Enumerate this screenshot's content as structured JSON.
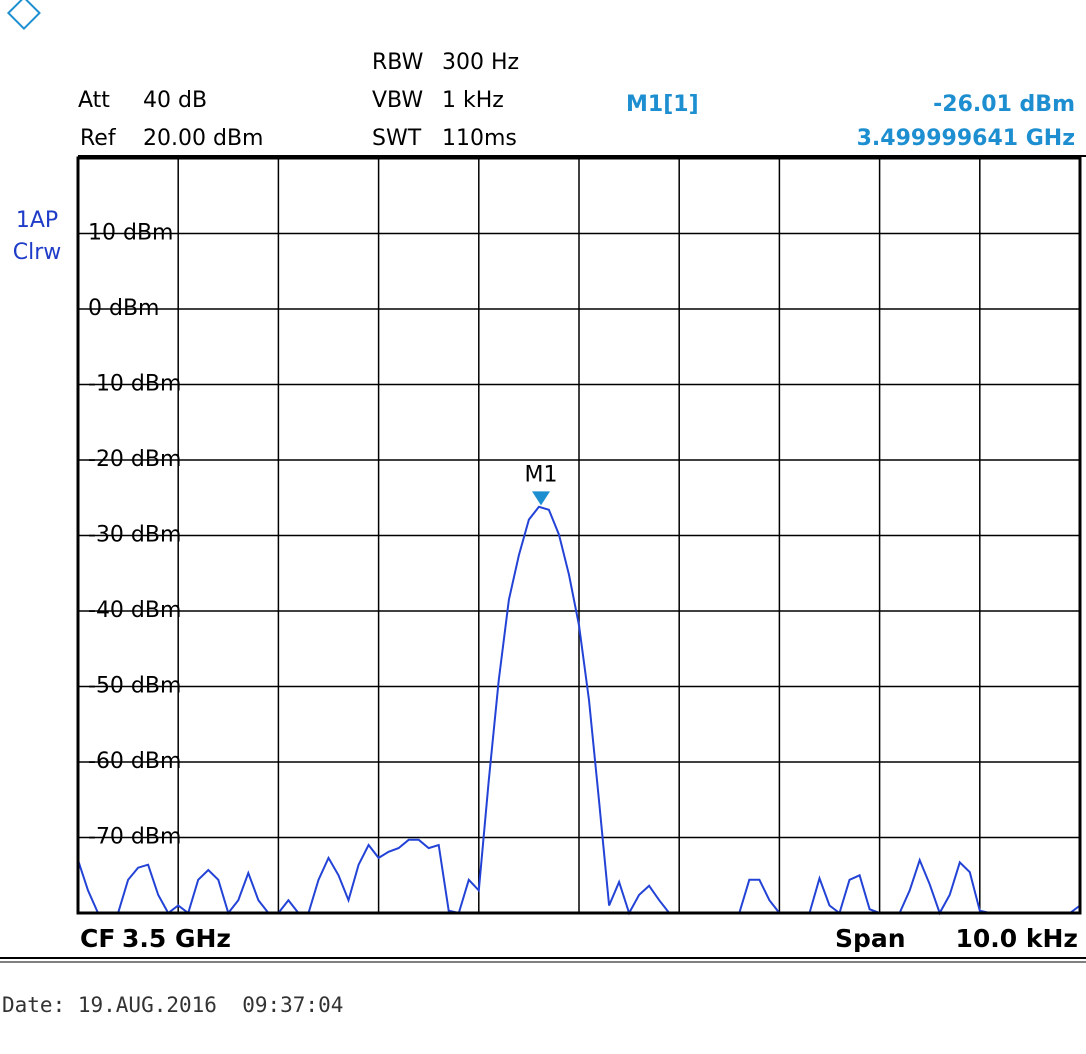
{
  "chart_data": {
    "type": "line",
    "settings": {
      "att_label": "Att",
      "att": "40 dB",
      "ref_label": "Ref",
      "ref": "20.00 dBm",
      "rbw_label": "RBW",
      "rbw": "300 Hz",
      "vbw_label": "VBW",
      "vbw": "1 kHz",
      "swt_label": "SWT",
      "swt": "110ms"
    },
    "trace": {
      "detector": "1AP",
      "mode": "Clrw"
    },
    "marker": {
      "name": "M1",
      "readout": "M1[1]",
      "value": -26.01,
      "value_label": "-26.01 dBm",
      "frequency": "3.499999641 GHz"
    },
    "footer": {
      "cf_label": "CF",
      "cf": "3.5 GHz",
      "span_label": "Span",
      "span": "10.0 kHz"
    },
    "date": "Date: 19.AUG.2016  09:37:04",
    "ylim": [
      -80,
      20
    ],
    "yticks": [
      {
        "value": 10,
        "label": "10 dBm"
      },
      {
        "value": 0,
        "label": "0 dBm"
      },
      {
        "value": -10,
        "label": "-10 dBm"
      },
      {
        "value": -20,
        "label": "-20 dBm"
      },
      {
        "value": -30,
        "label": "-30 dBm"
      },
      {
        "value": -40,
        "label": "-40 dBm"
      },
      {
        "value": -50,
        "label": "-50 dBm"
      },
      {
        "value": -60,
        "label": "-60 dBm"
      },
      {
        "value": -70,
        "label": "-70 dBm"
      }
    ],
    "grid": true,
    "series": [
      {
        "color": "#2343d6",
        "values": [
          -73,
          -77,
          -80,
          -80,
          -80,
          -75.6,
          -74,
          -73.6,
          -77.6,
          -80,
          -79,
          -80,
          -75.6,
          -74.3,
          -75.6,
          -80,
          -78.3,
          -74.7,
          -78.3,
          -80,
          -80,
          -78.3,
          -80,
          -80,
          -75.6,
          -72.7,
          -75,
          -78.3,
          -73.6,
          -71,
          -72.7,
          -71.9,
          -71.4,
          -70.3,
          -70.3,
          -71.4,
          -71,
          -79.7,
          -80,
          -75.6,
          -77,
          -62.4,
          -49.1,
          -38.5,
          -32.6,
          -27.9,
          -26.2,
          -26.6,
          -29.9,
          -35.2,
          -41.9,
          -51.8,
          -65.1,
          -79,
          -75.9,
          -80,
          -77.6,
          -76.4,
          -78.3,
          -80,
          -80,
          -80,
          -80,
          -80,
          -80,
          -80,
          -80,
          -75.6,
          -75.6,
          -78.3,
          -80,
          -80,
          -80,
          -80,
          -75.4,
          -79,
          -80,
          -75.6,
          -75,
          -79.5,
          -80,
          -80,
          -80,
          -77,
          -73,
          -76.2,
          -80,
          -77.6,
          -73.3,
          -74.6,
          -79.7,
          -80,
          -80,
          -80,
          -80,
          -80,
          -80,
          -80,
          -80,
          -80,
          -79
        ]
      }
    ]
  }
}
